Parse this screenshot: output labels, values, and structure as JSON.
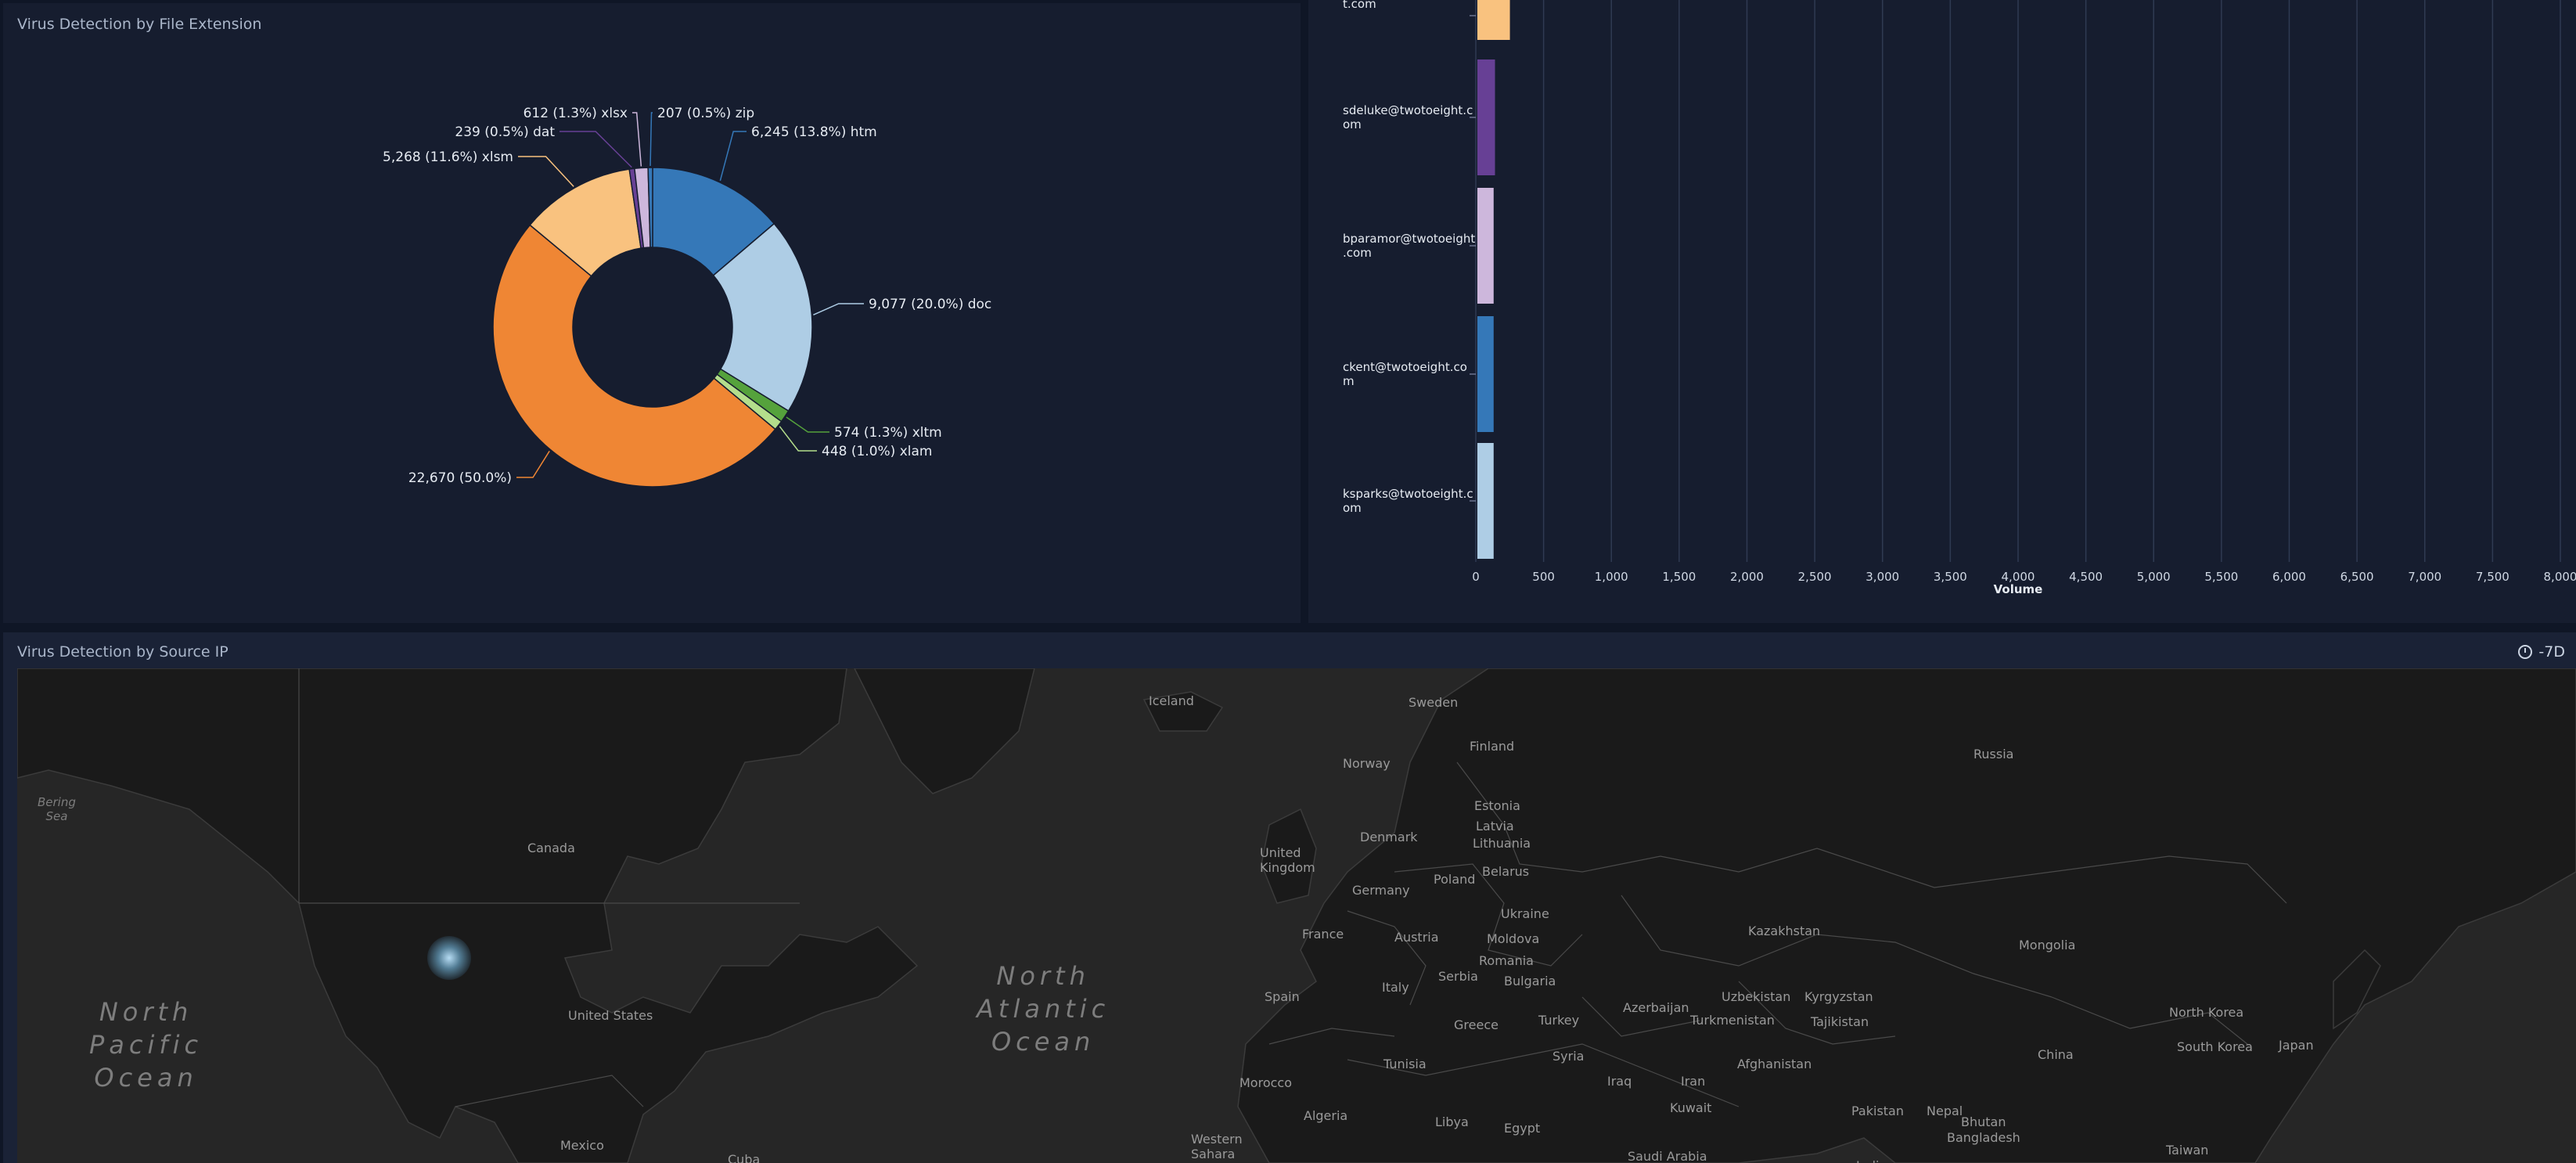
{
  "donut_panel": {
    "title": "Virus Detection by File Extension",
    "chart_data": {
      "type": "pie",
      "donut": true,
      "slices": [
        {
          "label": "htm",
          "value": 6245,
          "text": "6,245 (13.8%) htm",
          "color": "#3578b8"
        },
        {
          "label": "doc",
          "value": 9077,
          "text": "9,077 (20.0%) doc",
          "color": "#aecde5"
        },
        {
          "label": "xltm",
          "value": 574,
          "text": "574 (1.3%) xltm",
          "color": "#55a23c"
        },
        {
          "label": "xlam",
          "value": 448,
          "text": "448 (1.0%) xlam",
          "color": "#b4de8c"
        },
        {
          "label": "",
          "value": 22670,
          "text": "22,670 (50.0%)",
          "color": "#ef8634"
        },
        {
          "label": "xlsm",
          "value": 5268,
          "text": "5,268 (11.6%) xlsm",
          "color": "#f9c27f"
        },
        {
          "label": "dat",
          "value": 239,
          "text": "239 (0.5%) dat",
          "color": "#674095"
        },
        {
          "label": "xlsx",
          "value": 612,
          "text": "612 (1.3%) xlsx",
          "color": "#cdb7dc"
        },
        {
          "label": "zip",
          "value": 207,
          "text": "207 (0.5%) zip",
          "color": "#3578b8"
        }
      ]
    }
  },
  "bar_panel": {
    "chart_data": {
      "type": "bar",
      "orientation": "horizontal",
      "categories": [
        "t.com",
        "sdeluke@twotoeight.c\nom",
        "bparamor@twotoeight\n.com",
        "ckent@twotoeight.co\nm",
        "ksparks@twotoeight.c\nom"
      ],
      "values": [
        240,
        130,
        120,
        120,
        120
      ],
      "colors": [
        "#f9c27f",
        "#674095",
        "#cdb7dc",
        "#3578b8",
        "#aecde5"
      ],
      "xlabel": "Volume",
      "xlim": [
        0,
        8000
      ],
      "ticks": [
        "0",
        "500",
        "1,000",
        "1,500",
        "2,000",
        "2,500",
        "3,000",
        "3,500",
        "4,000",
        "4,500",
        "5,000",
        "5,500",
        "6,000",
        "6,500",
        "7,000",
        "7,500",
        "8,000"
      ],
      "grid": true
    }
  },
  "map_panel": {
    "title": "Virus Detection by Source IP",
    "time_range": "-7D",
    "oceans": [
      "North\nPacific\nOcean",
      "North\nAtlantic\nOcean"
    ],
    "seas": [
      "Bering\nSea"
    ],
    "countries": [
      "Iceland",
      "Sweden",
      "Finland",
      "Norway",
      "Russia",
      "Estonia",
      "Latvia",
      "Lithuania",
      "Denmark",
      "United\nKingdom",
      "Belarus",
      "Canada",
      "Poland",
      "Germany",
      "Ukraine",
      "Moldova",
      "France",
      "Austria",
      "Kazakhstan",
      "Mongolia",
      "Romania",
      "Serbia",
      "Italy",
      "Spain",
      "Bulgaria",
      "Uzbekistan",
      "Kyrgyzstan",
      "Azerbaijan",
      "United States",
      "Greece",
      "Turkey",
      "Turkmenistan",
      "Tajikistan",
      "North Korea",
      "South Korea",
      "Japan",
      "China",
      "Afghanistan",
      "Syria",
      "Tunisia",
      "Iraq",
      "Iran",
      "Morocco",
      "Kuwait",
      "Pakistan",
      "Nepal",
      "Bhutan",
      "Algeria",
      "Libya",
      "Egypt",
      "Bangladesh",
      "Mexico",
      "Western\nSahara",
      "Saudi Arabia",
      "Cuba",
      "India",
      "Taiwan"
    ],
    "hotspot": "source-ip-hotspot"
  }
}
